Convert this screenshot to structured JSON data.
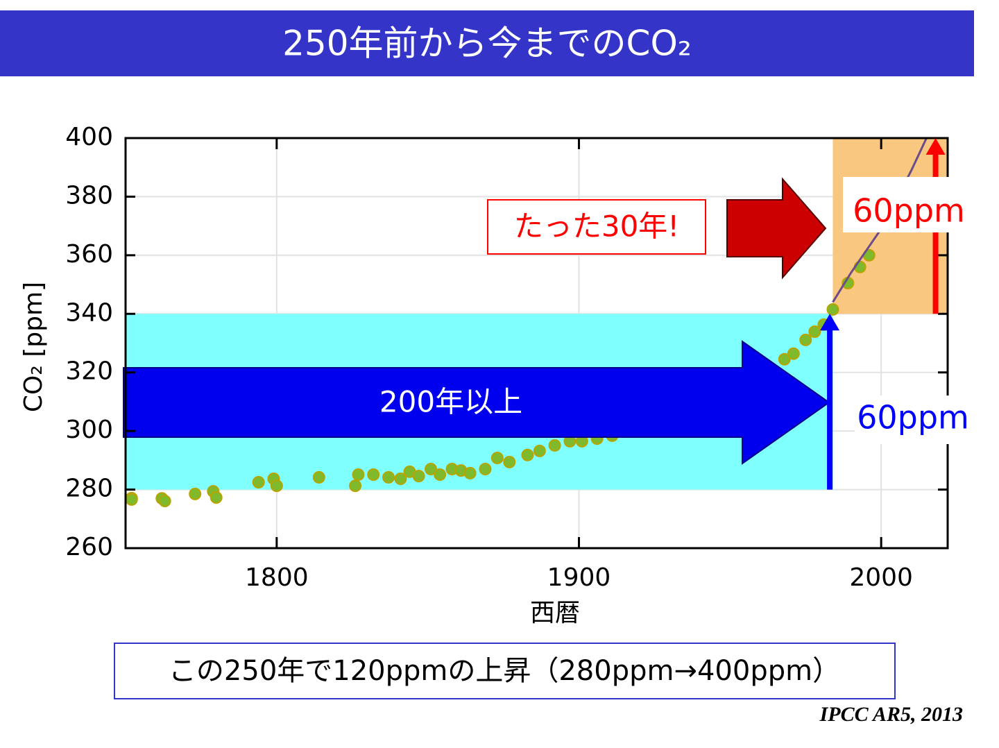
{
  "chart_data": {
    "type": "scatter",
    "title": "250年前から今までのCO₂",
    "x_label": "西暦",
    "y_label": "CO₂ [ppm]",
    "xlim": [
      1750,
      2022
    ],
    "ylim": [
      260,
      400
    ],
    "xticks": [
      1800,
      1900,
      2000
    ],
    "yticks": [
      260,
      280,
      300,
      320,
      340,
      360,
      380,
      400
    ],
    "grid": true,
    "series": [
      {
        "style": "points",
        "color": "#7fba2c",
        "x": [
          1752,
          1752,
          1762,
          1763,
          1773,
          1779,
          1780,
          1794,
          1799,
          1800,
          1814,
          1826,
          1827,
          1832,
          1837,
          1841,
          1844,
          1847,
          1851,
          1854,
          1858,
          1861,
          1864,
          1869,
          1873,
          1877,
          1883,
          1887,
          1892,
          1897,
          1901,
          1906,
          1911,
          1968,
          1971,
          1975,
          1978,
          1981,
          1984,
          1989,
          1993,
          1996
        ],
        "values": [
          277.1,
          276.6,
          277.0,
          276.1,
          278.5,
          279.4,
          277.3,
          282.5,
          283.7,
          281.3,
          284.2,
          281.3,
          285.1,
          285.1,
          284.2,
          283.7,
          286.1,
          284.6,
          287.0,
          285.1,
          287.0,
          286.5,
          285.6,
          287.0,
          290.8,
          289.4,
          291.8,
          293.2,
          295.1,
          296.5,
          296.5,
          297.4,
          298.4,
          324.5,
          326.4,
          331.1,
          333.9,
          336.3,
          341.5,
          350.5,
          356.0,
          360.0
        ]
      },
      {
        "style": "line",
        "color": "#6b4b8a",
        "x": [
          1984,
          1990,
          2000,
          2010,
          2015
        ],
        "values": [
          344,
          354,
          369,
          389,
          400
        ]
      }
    ],
    "highlights": [
      {
        "x": [
          1750,
          1984
        ],
        "y": [
          280,
          340
        ],
        "color": "#80ffff",
        "arrow_x": 1983,
        "arrow_color": "#0000ff",
        "label": "60ppm"
      },
      {
        "x": [
          1984,
          2022
        ],
        "y": [
          340,
          400
        ],
        "color": "#f9c77f",
        "arrow_x": 2018,
        "arrow_color": "#ff0000",
        "label": "60ppm"
      }
    ],
    "arrows": [
      {
        "label": "200年以上",
        "color": "#0000ee"
      },
      {
        "label": "たった30年!",
        "color": "#cc0000"
      }
    ],
    "summary": "この250年で120ppmの上昇（280ppm→400ppm）",
    "source": "IPCC AR5, 2013"
  }
}
